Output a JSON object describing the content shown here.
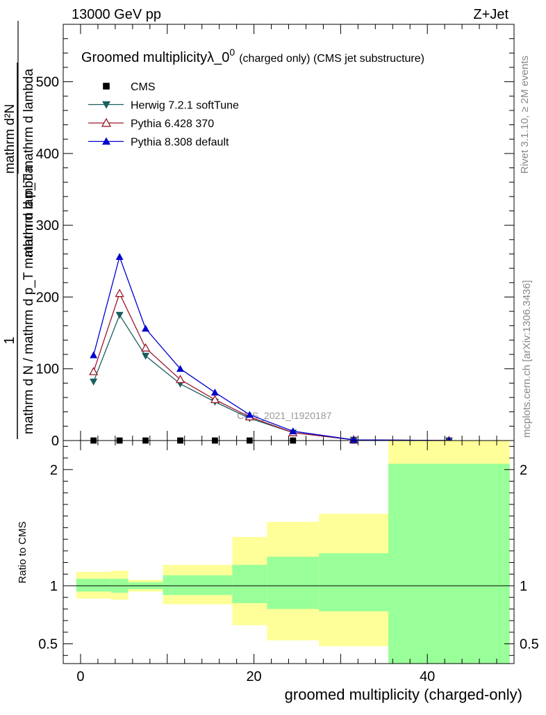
{
  "header": {
    "energy_label": "13000 GeV pp",
    "process_label": "Z+Jet"
  },
  "side_text": {
    "rivet": "Rivet 3.1.10, ≥ 2M events",
    "mcplots": "mcplots.cern.ch [arXiv:1306.3436]"
  },
  "watermark": "CMS_2021_I1920187",
  "chart_data": [
    {
      "type": "line",
      "title": "Groomed multiplicityλ_0",
      "title_superscript": "0",
      "subtitle": "(charged only) (CMS jet substructure)",
      "ylabel_numerator": "1",
      "ylabel_denominator": "mathrm d N / mathrm d p_T mathrm d lambda",
      "ylabel_top_num": "mathrm d²N",
      "ylabel_top_den": "mathrm d p_T mathrm d lambda",
      "xlabel": "groomed multiplicity (charged-only)",
      "xlim": [
        -2,
        50
      ],
      "ylim": [
        0,
        580
      ],
      "yticks": [
        0,
        100,
        200,
        300,
        400,
        500
      ],
      "ytick_labels": [
        "0",
        "100",
        "200",
        "300",
        "400",
        "500"
      ],
      "xticks": [
        0,
        20,
        40
      ],
      "xtick_labels": [
        "0",
        "20",
        "40"
      ],
      "legend_position": "top-left",
      "series": [
        {
          "name": "CMS",
          "color": "#000000",
          "marker": "square",
          "x": [
            1.5,
            4.5,
            7.5,
            11.5,
            15.5,
            19.5,
            24.5,
            31.5,
            42.5
          ],
          "values": [
            0,
            0,
            0,
            0,
            0,
            0,
            0,
            0,
            0
          ]
        },
        {
          "name": "Herwig 7.2.1 softTune",
          "color": "#1b5e5e",
          "marker": "triangle-down",
          "x": [
            1.5,
            4.5,
            7.5,
            11.5,
            15.5,
            19.5,
            24.5,
            31.5,
            42.5
          ],
          "values": [
            82,
            175,
            118,
            79,
            54,
            31,
            11,
            1,
            0
          ]
        },
        {
          "name": "Pythia 6.428 370",
          "color": "#9b1a2a",
          "marker": "triangle-open",
          "x": [
            1.5,
            4.5,
            7.5,
            11.5,
            15.5,
            19.5,
            24.5,
            31.5,
            42.5
          ],
          "values": [
            96,
            205,
            129,
            85,
            57,
            33,
            11,
            1,
            0
          ]
        },
        {
          "name": "Pythia 8.308 default",
          "color": "#0000d0",
          "marker": "triangle-up",
          "x": [
            1.5,
            4.5,
            7.5,
            11.5,
            15.5,
            19.5,
            24.5,
            31.5,
            42.5
          ],
          "values": [
            119,
            256,
            156,
            100,
            67,
            36,
            13,
            1,
            0
          ]
        }
      ]
    },
    {
      "type": "area",
      "ylabel": "Ratio to CMS",
      "xlabel": "groomed multiplicity (charged-only)",
      "xlim": [
        -2,
        50
      ],
      "ylim": [
        0.33,
        2.25
      ],
      "yticks": [
        0.5,
        1,
        2
      ],
      "ytick_labels": [
        "0.5",
        "1",
        "2"
      ],
      "reference_line": 1,
      "bins": [
        {
          "lo": -0.5,
          "hi": 3.5,
          "stat_lo": 0.95,
          "stat_hi": 1.06,
          "total_lo": 0.89,
          "total_hi": 1.12
        },
        {
          "lo": 3.5,
          "hi": 5.5,
          "stat_lo": 0.94,
          "stat_hi": 1.06,
          "total_lo": 0.88,
          "total_hi": 1.13
        },
        {
          "lo": 5.5,
          "hi": 9.5,
          "stat_lo": 0.97,
          "stat_hi": 1.03,
          "total_lo": 0.95,
          "total_hi": 1.05
        },
        {
          "lo": 9.5,
          "hi": 17.5,
          "stat_lo": 0.92,
          "stat_hi": 1.09,
          "total_lo": 0.84,
          "total_hi": 1.18
        },
        {
          "lo": 17.5,
          "hi": 21.5,
          "stat_lo": 0.85,
          "stat_hi": 1.18,
          "total_lo": 0.66,
          "total_hi": 1.42
        },
        {
          "lo": 21.5,
          "hi": 27.5,
          "stat_lo": 0.8,
          "stat_hi": 1.25,
          "total_lo": 0.53,
          "total_hi": 1.55
        },
        {
          "lo": 27.5,
          "hi": 35.5,
          "stat_lo": 0.78,
          "stat_hi": 1.28,
          "total_lo": 0.48,
          "total_hi": 1.62
        },
        {
          "lo": 35.5,
          "hi": 49.5,
          "stat_lo": 0.33,
          "stat_hi": 2.05,
          "total_lo": 0.33,
          "total_hi": 2.25
        }
      ],
      "colors": {
        "stat": "#99ff99",
        "total": "#ffff99"
      }
    }
  ]
}
